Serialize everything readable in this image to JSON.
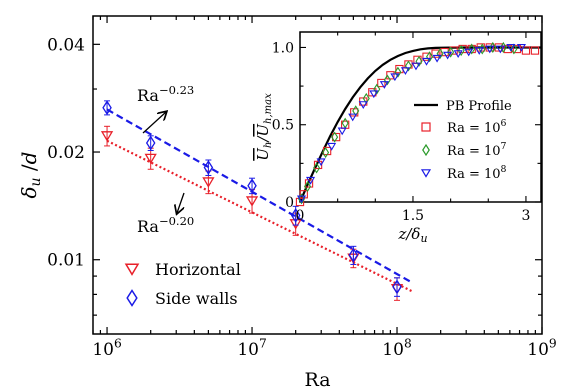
{
  "chart_data": [
    {
      "type": "scatter",
      "xlabel": "Ra",
      "ylabel": "δ_u / d",
      "xscale": "log",
      "yscale": "log",
      "xlim": [
        800000,
        1000000000
      ],
      "ylim": [
        0.0062,
        0.048
      ],
      "xticks": [
        {
          "value": 1000000,
          "base": "10",
          "exp": "6"
        },
        {
          "value": 10000000,
          "base": "10",
          "exp": "7"
        },
        {
          "value": 100000000,
          "base": "10",
          "exp": "8"
        },
        {
          "value": 1000000000,
          "base": "10",
          "exp": "9"
        }
      ],
      "yticks": [
        {
          "value": 0.01,
          "label": "0.01"
        },
        {
          "value": 0.02,
          "label": "0.02"
        },
        {
          "value": 0.04,
          "label": "0.04"
        }
      ],
      "series": [
        {
          "name": "Horizontal",
          "marker": "triangle-down",
          "color": "#e8202a",
          "x": [
            1000000,
            2000000,
            5000000,
            10000000,
            20000000,
            50000000,
            100000000
          ],
          "y": [
            0.0222,
            0.0192,
            0.0165,
            0.0146,
            0.0126,
            0.0101,
            0.0083
          ],
          "err": [
            0.0014,
            0.0013,
            0.0012,
            0.0011,
            0.0009,
            0.0006,
            0.0006
          ]
        },
        {
          "name": "Side walls",
          "marker": "diamond",
          "color": "#1a1ae6",
          "x": [
            1000000,
            2000000,
            5000000,
            10000000,
            20000000,
            50000000,
            100000000
          ],
          "y": [
            0.0266,
            0.0212,
            0.0181,
            0.0161,
            0.0133,
            0.0103,
            0.0084
          ],
          "err": [
            0.0012,
            0.001,
            0.0009,
            0.0008,
            0.0008,
            0.0006,
            0.0005
          ]
        }
      ],
      "fits": [
        {
          "label_base": "Ra",
          "label_exp": "−0.23",
          "color": "#1a1ae6",
          "style": "dashed",
          "exponent": -0.23,
          "x": [
            1000000,
            128000000
          ],
          "y0": 0.0263
        },
        {
          "label_base": "Ra",
          "label_exp": "−0.20",
          "color": "#e8202a",
          "style": "dotted",
          "exponent": -0.2,
          "x": [
            1000000,
            128000000
          ],
          "y0": 0.0215
        }
      ],
      "legend": {
        "placement": "bottom-left",
        "entries": [
          "Horizontal",
          "Side walls"
        ]
      }
    },
    {
      "type": "line",
      "xlabel": "z / δ_u",
      "ylabel": "U_h / U_h,max",
      "xlim": [
        0,
        3.2
      ],
      "ylim": [
        0,
        1.1
      ],
      "xticks": [
        {
          "value": 0,
          "label": "0"
        },
        {
          "value": 1.5,
          "label": "1.5"
        },
        {
          "value": 3,
          "label": "3"
        }
      ],
      "yticks": [
        {
          "value": 0,
          "label": "0"
        },
        {
          "value": 0.5,
          "label": "0.5"
        },
        {
          "value": 1,
          "label": "1.0"
        }
      ],
      "profile": {
        "name": "PB Profile",
        "color": "#000000",
        "x": [
          0,
          0.1,
          0.2,
          0.3,
          0.4,
          0.5,
          0.6,
          0.7,
          0.8,
          0.9,
          1.0,
          1.1,
          1.2,
          1.3,
          1.4,
          1.5,
          1.6,
          1.7,
          1.8,
          2.0,
          2.2,
          2.5,
          2.8,
          3.2
        ],
        "y": [
          0,
          0.111,
          0.22,
          0.325,
          0.425,
          0.518,
          0.602,
          0.677,
          0.743,
          0.8,
          0.848,
          0.888,
          0.92,
          0.945,
          0.964,
          0.978,
          0.988,
          0.994,
          0.997,
          0.999,
          1.0,
          1.0,
          1.0,
          1.0
        ]
      },
      "series": [
        {
          "name": "Ra = 10",
          "exp": "6",
          "marker": "square",
          "color": "#e8202a",
          "x": [
            0,
            0.05,
            0.12,
            0.24,
            0.36,
            0.48,
            0.6,
            0.72,
            0.84,
            0.96,
            1.08,
            1.2,
            1.32,
            1.44,
            1.56,
            1.68,
            1.8,
            1.92,
            2.04,
            2.16,
            2.28,
            2.4,
            2.52,
            2.64,
            2.76,
            2.88,
            3.0,
            3.12
          ],
          "y": [
            0,
            0.05,
            0.12,
            0.24,
            0.33,
            0.42,
            0.5,
            0.58,
            0.65,
            0.71,
            0.77,
            0.82,
            0.86,
            0.89,
            0.92,
            0.94,
            0.96,
            0.97,
            0.98,
            0.99,
            0.99,
            1.0,
            1.0,
            1.0,
            0.99,
            0.99,
            0.98,
            0.98
          ]
        },
        {
          "name": "Ra = 10",
          "exp": "7",
          "marker": "diamond",
          "color": "#2a9a2a",
          "x": [
            0.02,
            0.1,
            0.22,
            0.34,
            0.46,
            0.6,
            0.74,
            0.88,
            1.02,
            1.16,
            1.3,
            1.44,
            1.58,
            1.72,
            1.86,
            2.0,
            2.14,
            2.28,
            2.42,
            2.56,
            2.7,
            2.84
          ],
          "y": [
            0.02,
            0.1,
            0.22,
            0.32,
            0.42,
            0.51,
            0.59,
            0.67,
            0.73,
            0.79,
            0.84,
            0.88,
            0.91,
            0.94,
            0.96,
            0.97,
            0.98,
            0.99,
            0.99,
            1.0,
            1.0,
            0.99
          ]
        },
        {
          "name": "Ra = 10",
          "exp": "8",
          "marker": "triangle-down",
          "color": "#1a1ae6",
          "x": [
            0.02,
            0.14,
            0.28,
            0.42,
            0.56,
            0.7,
            0.84,
            0.98,
            1.12,
            1.26,
            1.4,
            1.54,
            1.68,
            1.82,
            1.96,
            2.1,
            2.24,
            2.38,
            2.52,
            2.66,
            2.8,
            2.94
          ],
          "y": [
            0.02,
            0.14,
            0.26,
            0.36,
            0.46,
            0.55,
            0.63,
            0.7,
            0.76,
            0.81,
            0.85,
            0.88,
            0.91,
            0.93,
            0.95,
            0.96,
            0.97,
            0.98,
            0.99,
            0.99,
            1.0,
            1.0
          ]
        }
      ],
      "legend": {
        "placement": "bottom-right",
        "entries": [
          "PB Profile",
          "Ra = 10^6",
          "Ra = 10^7",
          "Ra = 10^8"
        ]
      }
    }
  ]
}
